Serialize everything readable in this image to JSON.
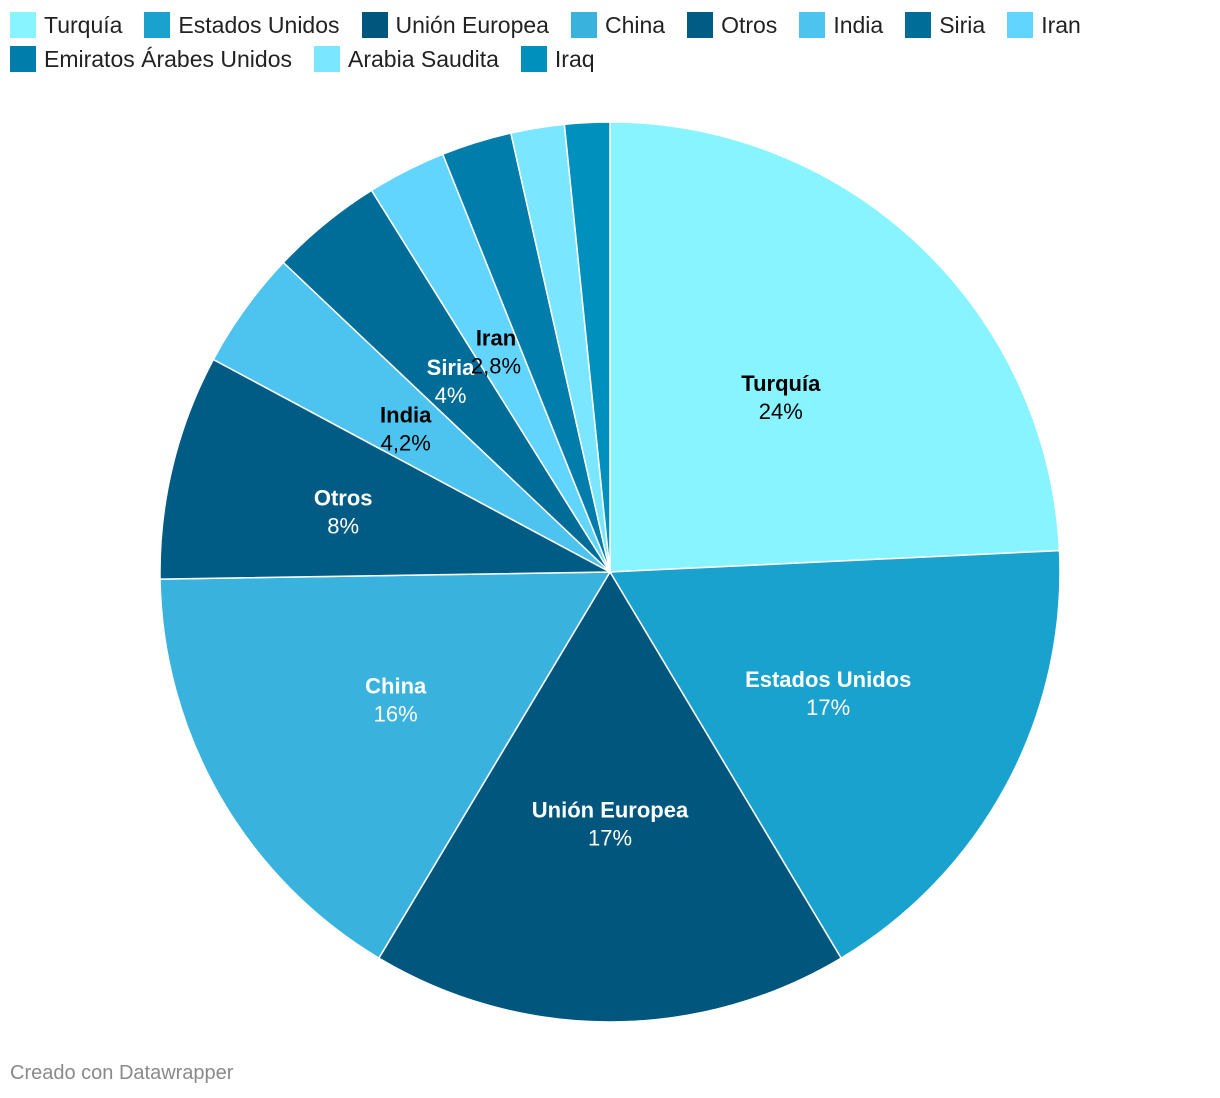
{
  "chart_data": {
    "type": "pie",
    "start": "top, clockwise",
    "slices": [
      {
        "label": "Turquía",
        "value": 24,
        "display": "24%",
        "color": "#88f4ff",
        "text_color": "#000000",
        "show_label": true
      },
      {
        "label": "Estados Unidos",
        "value": 17,
        "display": "17%",
        "color": "#1aa2ce",
        "text_color": "#ffffff",
        "show_label": true
      },
      {
        "label": "Unión Europea",
        "value": 17,
        "display": "17%",
        "color": "#00567c",
        "text_color": "#ffffff",
        "show_label": true
      },
      {
        "label": "China",
        "value": 16,
        "display": "16%",
        "color": "#3ab2de",
        "text_color": "#ffffff",
        "show_label": true
      },
      {
        "label": "Otros",
        "value": 8,
        "display": "8%",
        "color": "#005c85",
        "text_color": "#ffffff",
        "show_label": true
      },
      {
        "label": "India",
        "value": 4.2,
        "display": "4,2%",
        "color": "#4dc3f0",
        "text_color": "#000000",
        "show_label": true
      },
      {
        "label": "Siria",
        "value": 4,
        "display": "4%",
        "color": "#006c98",
        "text_color": "#ffffff",
        "show_label": true
      },
      {
        "label": "Iran",
        "value": 2.8,
        "display": "2,8%",
        "color": "#62d5ff",
        "text_color": "#000000",
        "show_label": true
      },
      {
        "label": "Emiratos Árabes Unidos",
        "value": 2.5,
        "display": "2,5%",
        "color": "#007dab",
        "text_color": "#ffffff",
        "show_label": false
      },
      {
        "label": "Arabia Saudita",
        "value": 1.9,
        "display": "1,9%",
        "color": "#7ae6ff",
        "text_color": "#000000",
        "show_label": false
      },
      {
        "label": "Iraq",
        "value": 1.6,
        "display": "1,6%",
        "color": "#0090be",
        "text_color": "#ffffff",
        "show_label": false
      }
    ]
  },
  "footer": {
    "credit": "Creado con Datawrapper"
  }
}
